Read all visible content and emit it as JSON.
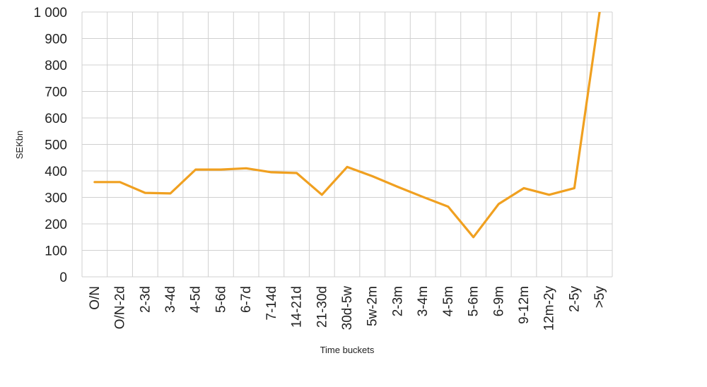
{
  "chart_data": {
    "type": "line",
    "title": "",
    "xlabel": "Time buckets",
    "ylabel": "SEKbn",
    "ylim": [
      0,
      1000
    ],
    "yticks": [
      "0",
      "100",
      "200",
      "300",
      "400",
      "500",
      "600",
      "700",
      "800",
      "900",
      "1 000"
    ],
    "grid": true,
    "legend": "none",
    "categories": [
      "O/N",
      "O/N-2d",
      "2-3d",
      "3-4d",
      "4-5d",
      "5-6d",
      "6-7d",
      "7-14d",
      "14-21d",
      "21-30d",
      "30d-5w",
      "5w-2m",
      "2-3m",
      "3-4m",
      "4-5m",
      "5-6m",
      "6-9m",
      "9-12m",
      "12m-2y",
      "2-5y",
      ">5y"
    ],
    "series": [
      {
        "values": [
          358,
          358,
          317,
          315,
          405,
          405,
          410,
          395,
          392,
          310,
          415,
          380,
          340,
          302,
          265,
          150,
          275,
          335,
          310,
          335,
          1000
        ],
        "color": "#f0a020"
      }
    ]
  }
}
